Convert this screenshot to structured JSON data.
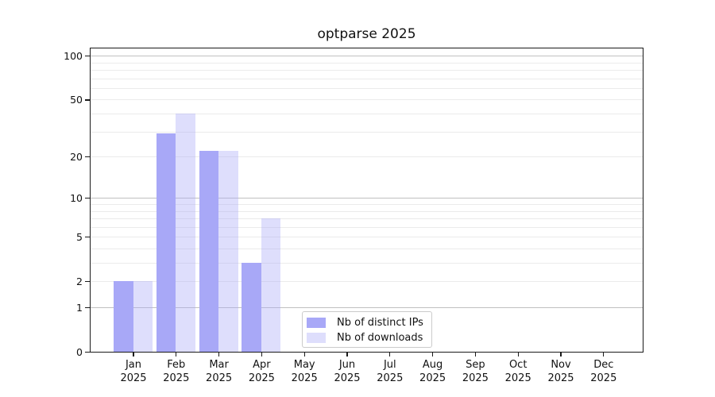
{
  "chart_data": {
    "type": "bar",
    "title": "optparse 2025",
    "categories": [
      "Jan",
      "Feb",
      "Mar",
      "Apr",
      "May",
      "Jun",
      "Jul",
      "Aug",
      "Sep",
      "Oct",
      "Nov",
      "Dec"
    ],
    "x_tick_year": "2025",
    "series": [
      {
        "name": "Nb of distinct IPs",
        "color": "#a8a8f7",
        "values": [
          2,
          29,
          22,
          3,
          0,
          0,
          0,
          0,
          0,
          0,
          0,
          0
        ]
      },
      {
        "name": "Nb of downloads",
        "color": "rgba(168,168,247,0.38)",
        "values": [
          2,
          40,
          22,
          7,
          0,
          0,
          0,
          0,
          0,
          0,
          0,
          0
        ]
      }
    ],
    "y_scale": "log1p",
    "y_max": 114,
    "y_ticks": [
      0,
      1,
      2,
      5,
      10,
      20,
      50,
      100
    ],
    "y_major_grid": [
      1,
      10,
      100
    ],
    "y_minor_grid": [
      2,
      3,
      4,
      5,
      6,
      7,
      8,
      9,
      20,
      30,
      40,
      50,
      60,
      70,
      80,
      90
    ],
    "grid": "horizontal only",
    "legend_position": "lower center inside",
    "colors": {
      "grid_major": "#c0c0c0",
      "grid_minor": "#ebebeb",
      "axis": "#1a1a1a",
      "text": "#111111",
      "background": "#ffffff"
    }
  }
}
